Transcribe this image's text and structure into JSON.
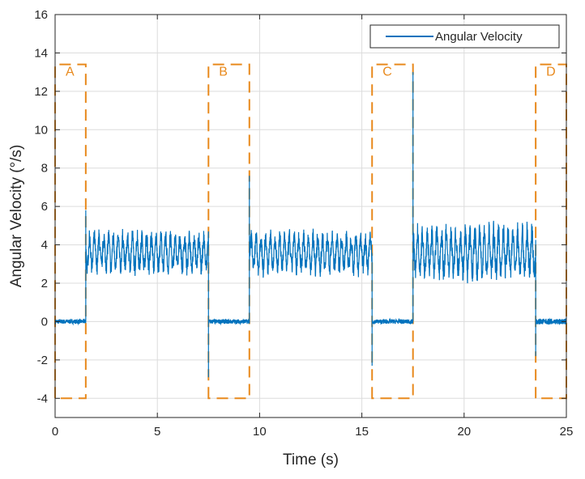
{
  "chart_data": {
    "type": "line",
    "title": "",
    "xlabel": "Time (s)",
    "ylabel": "Angular Velocity (°/s)",
    "xlim": [
      0,
      25
    ],
    "ylim": [
      -5,
      16
    ],
    "xticks": [
      0,
      5,
      10,
      15,
      20,
      25
    ],
    "yticks": [
      -4,
      -2,
      0,
      2,
      4,
      6,
      8,
      10,
      12,
      14,
      16
    ],
    "grid": true,
    "legend": {
      "position": "top-right",
      "entries": [
        "Angular Velocity"
      ]
    },
    "series": [
      {
        "name": "Angular Velocity",
        "color": "#0072bd",
        "style": "solid",
        "segments": [
          {
            "t_start": 0.0,
            "t_end": 1.5,
            "mean": 0.0,
            "amplitude": 0.12
          },
          {
            "t_start": 1.5,
            "t_end": 7.5,
            "mean": 3.6,
            "amplitude": 1.0,
            "peak_start": 5.8
          },
          {
            "t_start": 7.5,
            "t_end": 9.5,
            "mean": 0.0,
            "amplitude": 0.12,
            "peak_start": -2.9
          },
          {
            "t_start": 9.5,
            "t_end": 15.5,
            "mean": 3.6,
            "amplitude": 1.0,
            "peak_start": 7.6
          },
          {
            "t_start": 15.5,
            "t_end": 17.5,
            "mean": 0.0,
            "amplitude": 0.12,
            "peak_start": -2.3
          },
          {
            "t_start": 17.5,
            "t_end": 23.5,
            "mean": 3.6,
            "amplitude": 1.3,
            "peak_start": 13.0
          },
          {
            "t_start": 23.5,
            "t_end": 25.0,
            "mean": 0.0,
            "amplitude": 0.15,
            "peak_start": -1.8
          }
        ]
      }
    ],
    "regions": [
      {
        "label": "A",
        "x_start": 0.0,
        "x_end": 1.5,
        "y_low": -4,
        "y_high": 13.4
      },
      {
        "label": "B",
        "x_start": 7.5,
        "x_end": 9.5,
        "y_low": -4,
        "y_high": 13.4
      },
      {
        "label": "C",
        "x_start": 15.5,
        "x_end": 17.5,
        "y_low": -4,
        "y_high": 13.4
      },
      {
        "label": "D",
        "x_start": 23.5,
        "x_end": 25.0,
        "y_low": -4,
        "y_high": 13.4
      }
    ],
    "region_color": "#e8891c"
  }
}
